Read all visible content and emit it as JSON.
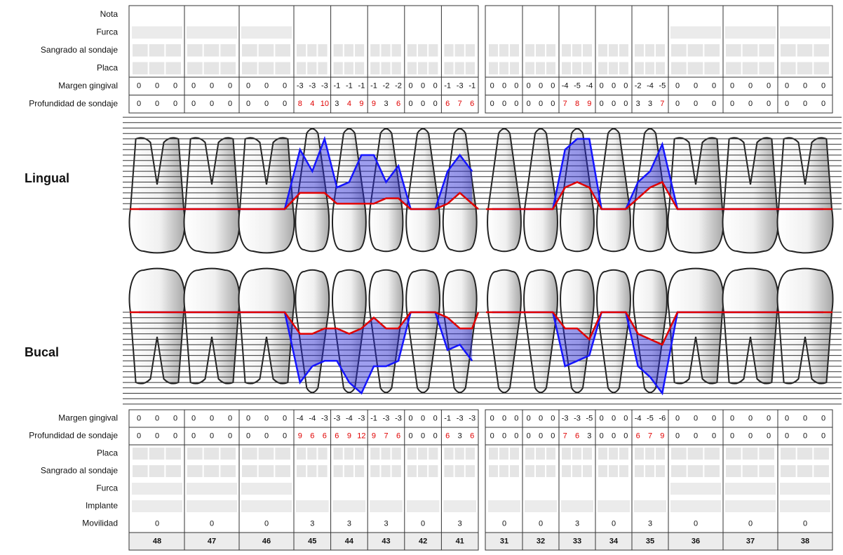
{
  "teeth": [
    48,
    47,
    46,
    45,
    44,
    43,
    42,
    41,
    31,
    32,
    33,
    34,
    35,
    36,
    37,
    38
  ],
  "lingual": {
    "title": "Lingual",
    "row_labels": [
      "Nota",
      "Furca",
      "Sangrado al sondaje",
      "Placa",
      "Margen gingival",
      "Profundidad de sondaje"
    ],
    "margen_gingival": [
      [
        0,
        0,
        0
      ],
      [
        0,
        0,
        0
      ],
      [
        0,
        0,
        0
      ],
      [
        -3,
        -3,
        -3
      ],
      [
        -1,
        -1,
        -1
      ],
      [
        -1,
        -2,
        -2
      ],
      [
        0,
        0,
        0
      ],
      [
        -1,
        -3,
        -1
      ],
      [
        0,
        0,
        0
      ],
      [
        0,
        0,
        0
      ],
      [
        -4,
        -5,
        -4
      ],
      [
        0,
        0,
        0
      ],
      [
        -2,
        -4,
        -5
      ],
      [
        0,
        0,
        0
      ],
      [
        0,
        0,
        0
      ],
      [
        0,
        0,
        0
      ]
    ],
    "profundidad_de_sondaje": [
      [
        0,
        0,
        0
      ],
      [
        0,
        0,
        0
      ],
      [
        0,
        0,
        0
      ],
      [
        8,
        4,
        10
      ],
      [
        3,
        4,
        9
      ],
      [
        9,
        3,
        6
      ],
      [
        0,
        0,
        0
      ],
      [
        6,
        7,
        6
      ],
      [
        0,
        0,
        0
      ],
      [
        0,
        0,
        0
      ],
      [
        7,
        8,
        9
      ],
      [
        0,
        0,
        0
      ],
      [
        3,
        3,
        7
      ],
      [
        0,
        0,
        0
      ],
      [
        0,
        0,
        0
      ],
      [
        0,
        0,
        0
      ]
    ]
  },
  "bucal": {
    "title": "Bucal",
    "row_labels": [
      "Margen gingival",
      "Profundidad de sondaje",
      "Placa",
      "Sangrado al sondaje",
      "Furca",
      "Implante",
      "Movilidad"
    ],
    "margen_gingival": [
      [
        0,
        0,
        0
      ],
      [
        0,
        0,
        0
      ],
      [
        0,
        0,
        0
      ],
      [
        -4,
        -4,
        -3
      ],
      [
        -3,
        -4,
        -3
      ],
      [
        -1,
        -3,
        -3
      ],
      [
        0,
        0,
        0
      ],
      [
        -1,
        -3,
        -3
      ],
      [
        0,
        0,
        0
      ],
      [
        0,
        0,
        0
      ],
      [
        -3,
        -3,
        -5
      ],
      [
        0,
        0,
        0
      ],
      [
        -4,
        -5,
        -6
      ],
      [
        0,
        0,
        0
      ],
      [
        0,
        0,
        0
      ],
      [
        0,
        0,
        0
      ]
    ],
    "profundidad_de_sondaje": [
      [
        0,
        0,
        0
      ],
      [
        0,
        0,
        0
      ],
      [
        0,
        0,
        0
      ],
      [
        9,
        6,
        6
      ],
      [
        6,
        9,
        12
      ],
      [
        9,
        7,
        6
      ],
      [
        0,
        0,
        0
      ],
      [
        6,
        3,
        6
      ],
      [
        0,
        0,
        0
      ],
      [
        0,
        0,
        0
      ],
      [
        7,
        6,
        3
      ],
      [
        0,
        0,
        0
      ],
      [
        6,
        7,
        9
      ],
      [
        0,
        0,
        0
      ],
      [
        0,
        0,
        0
      ],
      [
        0,
        0,
        0
      ]
    ],
    "movilidad": [
      0,
      0,
      0,
      3,
      3,
      3,
      0,
      3,
      0,
      0,
      3,
      0,
      3,
      0,
      0,
      0
    ]
  }
}
